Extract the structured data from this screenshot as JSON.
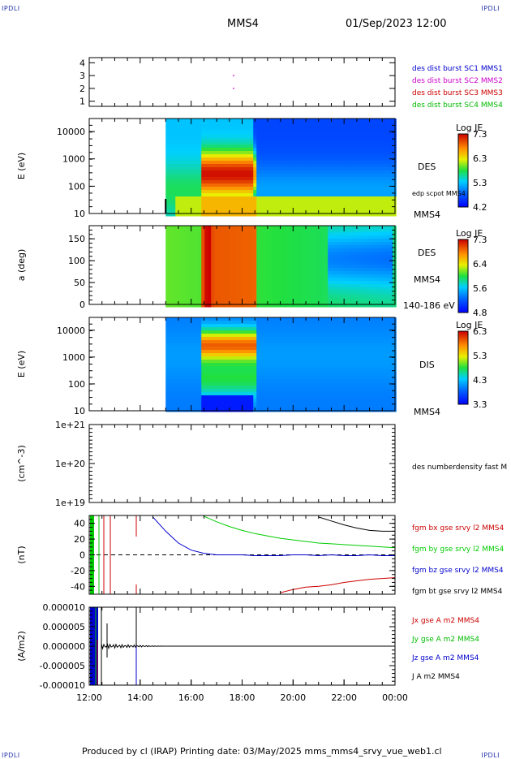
{
  "corners": {
    "tl": "IPDLI",
    "tr": "IPDLI",
    "bl": "IPDLI",
    "br": "IPDLI"
  },
  "header": {
    "spacecraft": "MMS4",
    "datetime": "01/Sep/2023 12:00"
  },
  "footer": {
    "text": "Produced by cl (IRAP)   Printing date: 03/May/2025   mms_mms4_srvy_vue_web1.cl"
  },
  "chart_data": [
    {
      "type": "scatter",
      "panel": "spacecraft-id",
      "yticks": [
        "1",
        "2",
        "3",
        "4"
      ],
      "ylim": [
        0.6,
        4.4
      ],
      "points": [
        {
          "time": "17:40",
          "y": 3,
          "color": "#cc00cc"
        },
        {
          "time": "17:40",
          "y": 2,
          "color": "#cc00cc"
        }
      ],
      "legend": [
        {
          "text": "des dist burst SC1 MMS1",
          "color": "#0000cc"
        },
        {
          "text": "des dist burst SC2 MMS2",
          "color": "#cc00cc"
        },
        {
          "text": "des dist burst SC3 MMS3",
          "color": "#cc0000"
        },
        {
          "text": "des dist burst SC4 MMS4",
          "color": "#00bb00"
        }
      ]
    },
    {
      "type": "heatmap",
      "panel": "des-energy",
      "ylabel": "E (eV)",
      "yscale": "log",
      "ylim": [
        10,
        30000
      ],
      "yticks": [
        "10",
        "100",
        "1000",
        "10000"
      ],
      "data_start": "15:00",
      "colorbar": {
        "title": "Log JE",
        "ticks": [
          "7.3",
          "6.3",
          "5.3",
          "4.2"
        ]
      },
      "instrument": "DES",
      "right_labels": [
        "edp scpot MMS4",
        "MMS4"
      ]
    },
    {
      "type": "heatmap",
      "panel": "des-pitch-angle",
      "ylabel": "a (deg)",
      "ylim": [
        0,
        180
      ],
      "yticks": [
        "0",
        "50",
        "100",
        "150"
      ],
      "data_start": "15:00",
      "colorbar": {
        "title": "Log JE",
        "ticks": [
          "7.3",
          "6.4",
          "5.6",
          "4.8"
        ]
      },
      "instrument": "DES",
      "right_labels": [
        "MMS4",
        "140-186 eV"
      ]
    },
    {
      "type": "heatmap",
      "panel": "dis-energy",
      "ylabel": "E (eV)",
      "yscale": "log",
      "ylim": [
        10,
        30000
      ],
      "yticks": [
        "10",
        "100",
        "1000",
        "10000"
      ],
      "data_start": "15:00",
      "colorbar": {
        "title": "Log JE",
        "ticks": [
          "6.3",
          "5.3",
          "4.3",
          "3.3"
        ]
      },
      "instrument": "DIS",
      "right_labels": [
        "MMS4"
      ]
    },
    {
      "type": "line",
      "panel": "density",
      "ylabel": "(cm^-3)",
      "yscale": "log",
      "yticks": [
        "1e+19",
        "1e+20",
        "1e+21"
      ],
      "legend": [
        {
          "text": "des numberdensity fast M",
          "color": "#000000"
        }
      ],
      "series": []
    },
    {
      "type": "line",
      "panel": "magnetic-field",
      "ylabel": "(nT)",
      "ylim": [
        -50,
        50
      ],
      "yticks": [
        "-40",
        "-20",
        "0",
        "20",
        "40"
      ],
      "x": [
        "14:30",
        "15:00",
        "15:30",
        "16:00",
        "16:30",
        "17:00",
        "17:30",
        "18:00",
        "18:30",
        "19:00",
        "19:30",
        "20:00",
        "20:30",
        "21:00",
        "21:30",
        "22:00",
        "22:30",
        "23:00",
        "23:30",
        "00:00"
      ],
      "series": [
        {
          "name": "fgm bx gse srvy l2 MMS4",
          "color": "#cc0000",
          "values": [
            null,
            null,
            null,
            null,
            null,
            null,
            null,
            null,
            null,
            null,
            -48,
            -44,
            -41,
            -40,
            -38,
            -35,
            -33,
            -31,
            -30,
            -29
          ]
        },
        {
          "name": "fgm by gse srvy l2 MMS4",
          "color": "#00cc00",
          "values": [
            null,
            null,
            null,
            null,
            49,
            42,
            36,
            31,
            27,
            24,
            21,
            19,
            17,
            15,
            14,
            13,
            12,
            11,
            10,
            9
          ]
        },
        {
          "name": "fgm bz gse srvy l2 MMS4",
          "color": "#0000cc",
          "values": [
            48,
            30,
            15,
            6,
            2,
            0,
            0,
            0,
            -1,
            -1,
            -1,
            0,
            0,
            -1,
            0,
            -1,
            -1,
            0,
            -1,
            -1
          ]
        },
        {
          "name": "fgm bt gse srvy l2 MMS4",
          "color": "#000000",
          "values": [
            null,
            null,
            null,
            null,
            null,
            null,
            null,
            null,
            null,
            null,
            null,
            null,
            null,
            48,
            43,
            38,
            34,
            31,
            30,
            30
          ]
        }
      ]
    },
    {
      "type": "line",
      "panel": "current-density",
      "ylabel": "(A/m2)",
      "ylim": [
        -1e-05,
        1e-05
      ],
      "yticks": [
        "-0.000010",
        "-0.000005",
        "0.000000",
        "0.000005",
        "0.000010"
      ],
      "xticks": [
        "12:00",
        "14:00",
        "16:00",
        "18:00",
        "20:00",
        "22:00",
        "00:00"
      ],
      "series": [
        {
          "name": "Jx gse A m2 MMS4",
          "color": "#cc0000"
        },
        {
          "name": "Jy gse A m2 MMS4",
          "color": "#00bb00"
        },
        {
          "name": "Jz gse A m2 MMS4",
          "color": "#0000cc"
        },
        {
          "name": "J A m2 MMS4",
          "color": "#000000"
        }
      ]
    }
  ]
}
